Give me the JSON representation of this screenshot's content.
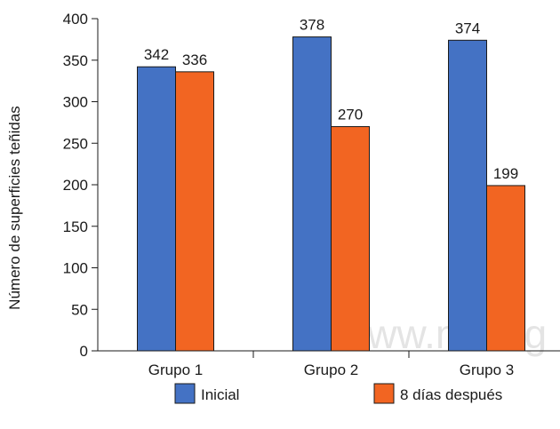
{
  "watermark": "www.medig",
  "chart_data": {
    "type": "bar",
    "categories": [
      "Grupo 1",
      "Grupo 2",
      "Grupo 3"
    ],
    "series": [
      {
        "name": "Inicial",
        "values": [
          342,
          378,
          374
        ],
        "color": "#4472C4"
      },
      {
        "name": "8 días después",
        "values": [
          336,
          270,
          199
        ],
        "color": "#F26522"
      }
    ],
    "ylabel": "Número de superficies teñidas",
    "ylim": [
      0,
      400
    ],
    "yticks": [
      0,
      50,
      100,
      150,
      200,
      250,
      300,
      350,
      400
    ],
    "grid": false,
    "legend": "bottom"
  }
}
